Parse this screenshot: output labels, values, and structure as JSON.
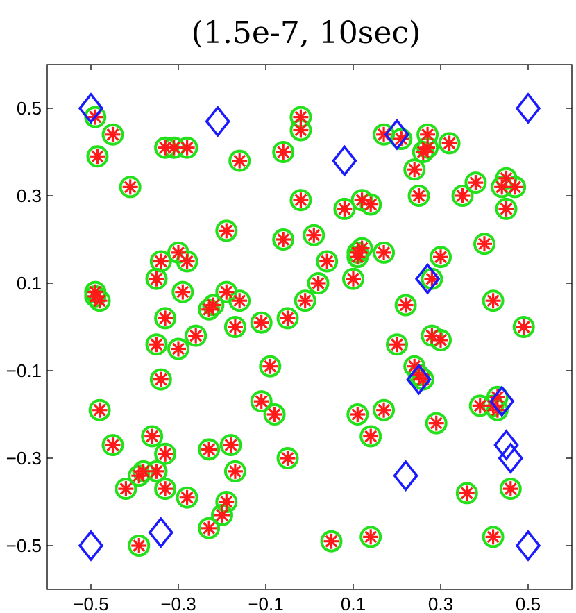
{
  "chart_data": {
    "type": "scatter",
    "title": "(1.5e-7, 10sec)",
    "xlabel": "",
    "ylabel": "",
    "xlim": [
      -0.6,
      0.6
    ],
    "ylim": [
      -0.6,
      0.6
    ],
    "x_ticks": [
      -0.5,
      -0.3,
      -0.1,
      0.1,
      0.3,
      0.5
    ],
    "y_ticks": [
      0.5,
      0.3,
      0.1,
      -0.1,
      -0.3,
      -0.5
    ],
    "x_tick_labels": [
      "−0.5",
      "−0.3",
      "−0.1",
      "0.1",
      "0.3",
      "0.5"
    ],
    "y_tick_labels": [
      "0.5",
      "0.3",
      "0.1",
      "−0.1",
      "−0.3",
      "−0.5"
    ],
    "grid": false,
    "series": [
      {
        "marker": "circle",
        "color": "#22e01a",
        "points": [
          [
            -0.49,
            0.48
          ],
          [
            -0.485,
            0.39
          ],
          [
            -0.45,
            0.44
          ],
          [
            -0.41,
            0.32
          ],
          [
            -0.33,
            0.41
          ],
          [
            -0.31,
            0.41
          ],
          [
            -0.28,
            0.41
          ],
          [
            -0.16,
            0.38
          ],
          [
            -0.06,
            0.4
          ],
          [
            -0.02,
            0.48
          ],
          [
            -0.02,
            0.45
          ],
          [
            0.17,
            0.44
          ],
          [
            0.21,
            0.43
          ],
          [
            0.27,
            0.44
          ],
          [
            0.26,
            0.4
          ],
          [
            0.27,
            0.41
          ],
          [
            0.32,
            0.42
          ],
          [
            0.24,
            0.36
          ],
          [
            0.25,
            0.3
          ],
          [
            0.35,
            0.3
          ],
          [
            0.38,
            0.33
          ],
          [
            0.45,
            0.34
          ],
          [
            0.44,
            0.32
          ],
          [
            0.47,
            0.32
          ],
          [
            0.45,
            0.27
          ],
          [
            -0.02,
            0.29
          ],
          [
            0.08,
            0.27
          ],
          [
            0.12,
            0.29
          ],
          [
            0.14,
            0.28
          ],
          [
            -0.19,
            0.22
          ],
          [
            -0.06,
            0.2
          ],
          [
            0.01,
            0.21
          ],
          [
            0.04,
            0.15
          ],
          [
            0.11,
            0.17
          ],
          [
            0.12,
            0.18
          ],
          [
            0.11,
            0.16
          ],
          [
            0.17,
            0.17
          ],
          [
            0.1,
            0.11
          ],
          [
            0.3,
            0.16
          ],
          [
            0.4,
            0.19
          ],
          [
            -0.34,
            0.15
          ],
          [
            -0.3,
            0.17
          ],
          [
            -0.28,
            0.15
          ],
          [
            -0.35,
            0.11
          ],
          [
            -0.49,
            0.08
          ],
          [
            -0.49,
            0.07
          ],
          [
            -0.48,
            0.06
          ],
          [
            -0.29,
            0.08
          ],
          [
            -0.19,
            0.08
          ],
          [
            -0.16,
            0.06
          ],
          [
            -0.22,
            0.05
          ],
          [
            -0.23,
            0.04
          ],
          [
            -0.33,
            0.02
          ],
          [
            0.02,
            0.1
          ],
          [
            -0.01,
            0.06
          ],
          [
            -0.05,
            0.02
          ],
          [
            -0.11,
            0.01
          ],
          [
            -0.17,
            0.0
          ],
          [
            0.28,
            0.11
          ],
          [
            0.22,
            0.05
          ],
          [
            0.42,
            0.06
          ],
          [
            0.49,
            0.0
          ],
          [
            -0.35,
            -0.04
          ],
          [
            -0.3,
            -0.05
          ],
          [
            -0.26,
            -0.02
          ],
          [
            0.2,
            -0.04
          ],
          [
            0.28,
            -0.02
          ],
          [
            0.3,
            -0.03
          ],
          [
            -0.34,
            -0.12
          ],
          [
            -0.09,
            -0.09
          ],
          [
            0.24,
            -0.09
          ],
          [
            0.25,
            -0.11
          ],
          [
            0.26,
            -0.12
          ],
          [
            -0.48,
            -0.19
          ],
          [
            -0.11,
            -0.17
          ],
          [
            -0.08,
            -0.2
          ],
          [
            0.11,
            -0.2
          ],
          [
            0.17,
            -0.19
          ],
          [
            0.14,
            -0.25
          ],
          [
            0.29,
            -0.22
          ],
          [
            0.39,
            -0.18
          ],
          [
            0.42,
            -0.18
          ],
          [
            0.43,
            -0.19
          ],
          [
            0.43,
            -0.16
          ],
          [
            -0.45,
            -0.27
          ],
          [
            -0.36,
            -0.25
          ],
          [
            -0.33,
            -0.29
          ],
          [
            -0.23,
            -0.28
          ],
          [
            -0.18,
            -0.27
          ],
          [
            -0.17,
            -0.33
          ],
          [
            -0.35,
            -0.33
          ],
          [
            -0.38,
            -0.33
          ],
          [
            -0.39,
            -0.34
          ],
          [
            -0.42,
            -0.37
          ],
          [
            -0.33,
            -0.37
          ],
          [
            -0.28,
            -0.39
          ],
          [
            -0.19,
            -0.4
          ],
          [
            -0.2,
            -0.43
          ],
          [
            -0.23,
            -0.46
          ],
          [
            -0.05,
            -0.3
          ],
          [
            0.36,
            -0.38
          ],
          [
            0.46,
            -0.37
          ],
          [
            -0.39,
            -0.5
          ],
          [
            0.05,
            -0.49
          ],
          [
            0.14,
            -0.48
          ],
          [
            0.42,
            -0.48
          ]
        ]
      },
      {
        "marker": "asterisk",
        "color": "#ff1a1a",
        "points": [
          [
            -0.49,
            0.48
          ],
          [
            -0.485,
            0.39
          ],
          [
            -0.45,
            0.44
          ],
          [
            -0.41,
            0.32
          ],
          [
            -0.33,
            0.41
          ],
          [
            -0.31,
            0.41
          ],
          [
            -0.28,
            0.41
          ],
          [
            -0.16,
            0.38
          ],
          [
            -0.06,
            0.4
          ],
          [
            -0.02,
            0.48
          ],
          [
            -0.02,
            0.45
          ],
          [
            0.17,
            0.44
          ],
          [
            0.21,
            0.43
          ],
          [
            0.27,
            0.44
          ],
          [
            0.26,
            0.4
          ],
          [
            0.27,
            0.41
          ],
          [
            0.32,
            0.42
          ],
          [
            0.24,
            0.36
          ],
          [
            0.25,
            0.3
          ],
          [
            0.35,
            0.3
          ],
          [
            0.38,
            0.33
          ],
          [
            0.45,
            0.34
          ],
          [
            0.44,
            0.32
          ],
          [
            0.47,
            0.32
          ],
          [
            0.45,
            0.27
          ],
          [
            -0.02,
            0.29
          ],
          [
            0.08,
            0.27
          ],
          [
            0.12,
            0.29
          ],
          [
            0.14,
            0.28
          ],
          [
            -0.19,
            0.22
          ],
          [
            -0.06,
            0.2
          ],
          [
            0.01,
            0.21
          ],
          [
            0.04,
            0.15
          ],
          [
            0.11,
            0.17
          ],
          [
            0.12,
            0.18
          ],
          [
            0.11,
            0.16
          ],
          [
            0.17,
            0.17
          ],
          [
            0.1,
            0.11
          ],
          [
            0.3,
            0.16
          ],
          [
            0.4,
            0.19
          ],
          [
            -0.34,
            0.15
          ],
          [
            -0.3,
            0.17
          ],
          [
            -0.28,
            0.15
          ],
          [
            -0.35,
            0.11
          ],
          [
            -0.49,
            0.08
          ],
          [
            -0.49,
            0.07
          ],
          [
            -0.48,
            0.06
          ],
          [
            -0.29,
            0.08
          ],
          [
            -0.19,
            0.08
          ],
          [
            -0.16,
            0.06
          ],
          [
            -0.22,
            0.05
          ],
          [
            -0.23,
            0.04
          ],
          [
            -0.33,
            0.02
          ],
          [
            0.02,
            0.1
          ],
          [
            -0.01,
            0.06
          ],
          [
            -0.05,
            0.02
          ],
          [
            -0.11,
            0.01
          ],
          [
            -0.17,
            0.0
          ],
          [
            0.28,
            0.11
          ],
          [
            0.22,
            0.05
          ],
          [
            0.42,
            0.06
          ],
          [
            0.49,
            0.0
          ],
          [
            -0.35,
            -0.04
          ],
          [
            -0.3,
            -0.05
          ],
          [
            -0.26,
            -0.02
          ],
          [
            0.2,
            -0.04
          ],
          [
            0.28,
            -0.02
          ],
          [
            0.3,
            -0.03
          ],
          [
            -0.34,
            -0.12
          ],
          [
            -0.09,
            -0.09
          ],
          [
            0.24,
            -0.09
          ],
          [
            0.25,
            -0.11
          ],
          [
            0.26,
            -0.12
          ],
          [
            -0.48,
            -0.19
          ],
          [
            -0.11,
            -0.17
          ],
          [
            -0.08,
            -0.2
          ],
          [
            0.11,
            -0.2
          ],
          [
            0.17,
            -0.19
          ],
          [
            0.14,
            -0.25
          ],
          [
            0.29,
            -0.22
          ],
          [
            0.39,
            -0.18
          ],
          [
            0.42,
            -0.18
          ],
          [
            0.43,
            -0.19
          ],
          [
            0.43,
            -0.16
          ],
          [
            -0.45,
            -0.27
          ],
          [
            -0.36,
            -0.25
          ],
          [
            -0.33,
            -0.29
          ],
          [
            -0.23,
            -0.28
          ],
          [
            -0.18,
            -0.27
          ],
          [
            -0.17,
            -0.33
          ],
          [
            -0.35,
            -0.33
          ],
          [
            -0.38,
            -0.33
          ],
          [
            -0.39,
            -0.34
          ],
          [
            -0.42,
            -0.37
          ],
          [
            -0.33,
            -0.37
          ],
          [
            -0.28,
            -0.39
          ],
          [
            -0.19,
            -0.4
          ],
          [
            -0.2,
            -0.43
          ],
          [
            -0.23,
            -0.46
          ],
          [
            -0.05,
            -0.3
          ],
          [
            0.36,
            -0.38
          ],
          [
            0.46,
            -0.37
          ],
          [
            -0.39,
            -0.5
          ],
          [
            0.05,
            -0.49
          ],
          [
            0.14,
            -0.48
          ],
          [
            0.42,
            -0.48
          ]
        ]
      },
      {
        "marker": "diamond",
        "color": "#1a1aff",
        "points": [
          [
            -0.5,
            0.5
          ],
          [
            -0.21,
            0.47
          ],
          [
            0.08,
            0.38
          ],
          [
            0.2,
            0.44
          ],
          [
            0.5,
            0.5
          ],
          [
            0.27,
            0.11
          ],
          [
            0.25,
            -0.12
          ],
          [
            0.44,
            -0.17
          ],
          [
            0.45,
            -0.27
          ],
          [
            0.46,
            -0.3
          ],
          [
            0.22,
            -0.34
          ],
          [
            -0.5,
            -0.5
          ],
          [
            -0.34,
            -0.47
          ],
          [
            0.5,
            -0.5
          ]
        ]
      }
    ]
  }
}
